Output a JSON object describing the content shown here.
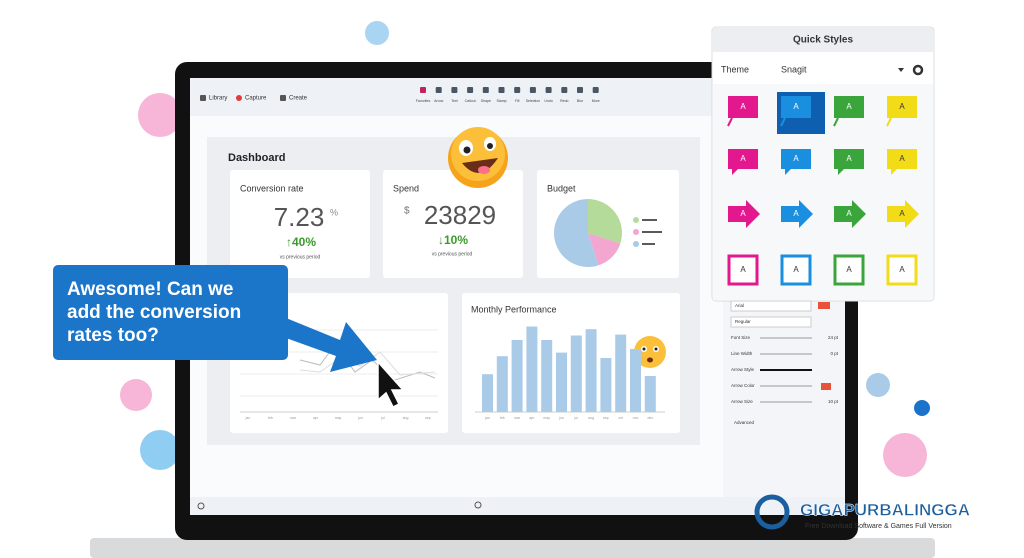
{
  "toolbar": {
    "left": [
      "Library",
      "Capture",
      "Create"
    ],
    "tools": [
      "Favorites",
      "Arrow",
      "Text",
      "Callout",
      "Shape",
      "Stamp",
      "Fill",
      "Selection",
      "Undo",
      "Redo",
      "Blur",
      "More"
    ]
  },
  "dashboard": {
    "title": "Dashboard",
    "conversion": {
      "title": "Conversion rate",
      "value": "7.23",
      "unit": "%",
      "change": "↑40%",
      "note": "vs previous period"
    },
    "spend": {
      "title": "Spend",
      "currency": "$",
      "value": "23829",
      "change": "↓10%",
      "note": "vs previous period"
    },
    "budget": {
      "title": "Budget",
      "slices": [
        {
          "color": "#b5db9a",
          "value": 30
        },
        {
          "color": "#f2a6d0",
          "value": 15
        },
        {
          "color": "#a9cbe8",
          "value": 55
        }
      ]
    },
    "monthly": {
      "title": "Monthly Performance",
      "values": [
        42,
        62,
        80,
        95,
        80,
        66,
        85,
        92,
        60,
        86,
        70,
        40
      ]
    },
    "months": [
      "jan",
      "feb",
      "mar",
      "apr",
      "may",
      "jun",
      "jul",
      "aug",
      "sep",
      "oct",
      "nov",
      "dec"
    ]
  },
  "callout": {
    "lines": [
      "Awesome! Can we",
      "add the conversion",
      "rates too?"
    ]
  },
  "quick_styles": {
    "title": "Quick Styles",
    "theme_label": "Theme",
    "theme": "Snagit",
    "tile_text": "A",
    "colors": [
      "#e3188f",
      "#1a8fe0",
      "#3aa53a",
      "#f2dc18"
    ]
  },
  "properties": {
    "rows": [
      [
        "Arial",
        ""
      ],
      [
        "Regular",
        ""
      ],
      [
        "Font Size",
        "24 pt"
      ],
      [
        "Line Width",
        "0 pt"
      ],
      [
        "Arrow Style",
        ""
      ],
      [
        "Arrow Color",
        ""
      ],
      [
        "Arrow Size",
        "10 pt"
      ]
    ],
    "advanced": "Advanced"
  },
  "watermark": {
    "brand": "GIGAPURBALINGGA",
    "tagline": "Free Download Software & Games Full Version"
  }
}
